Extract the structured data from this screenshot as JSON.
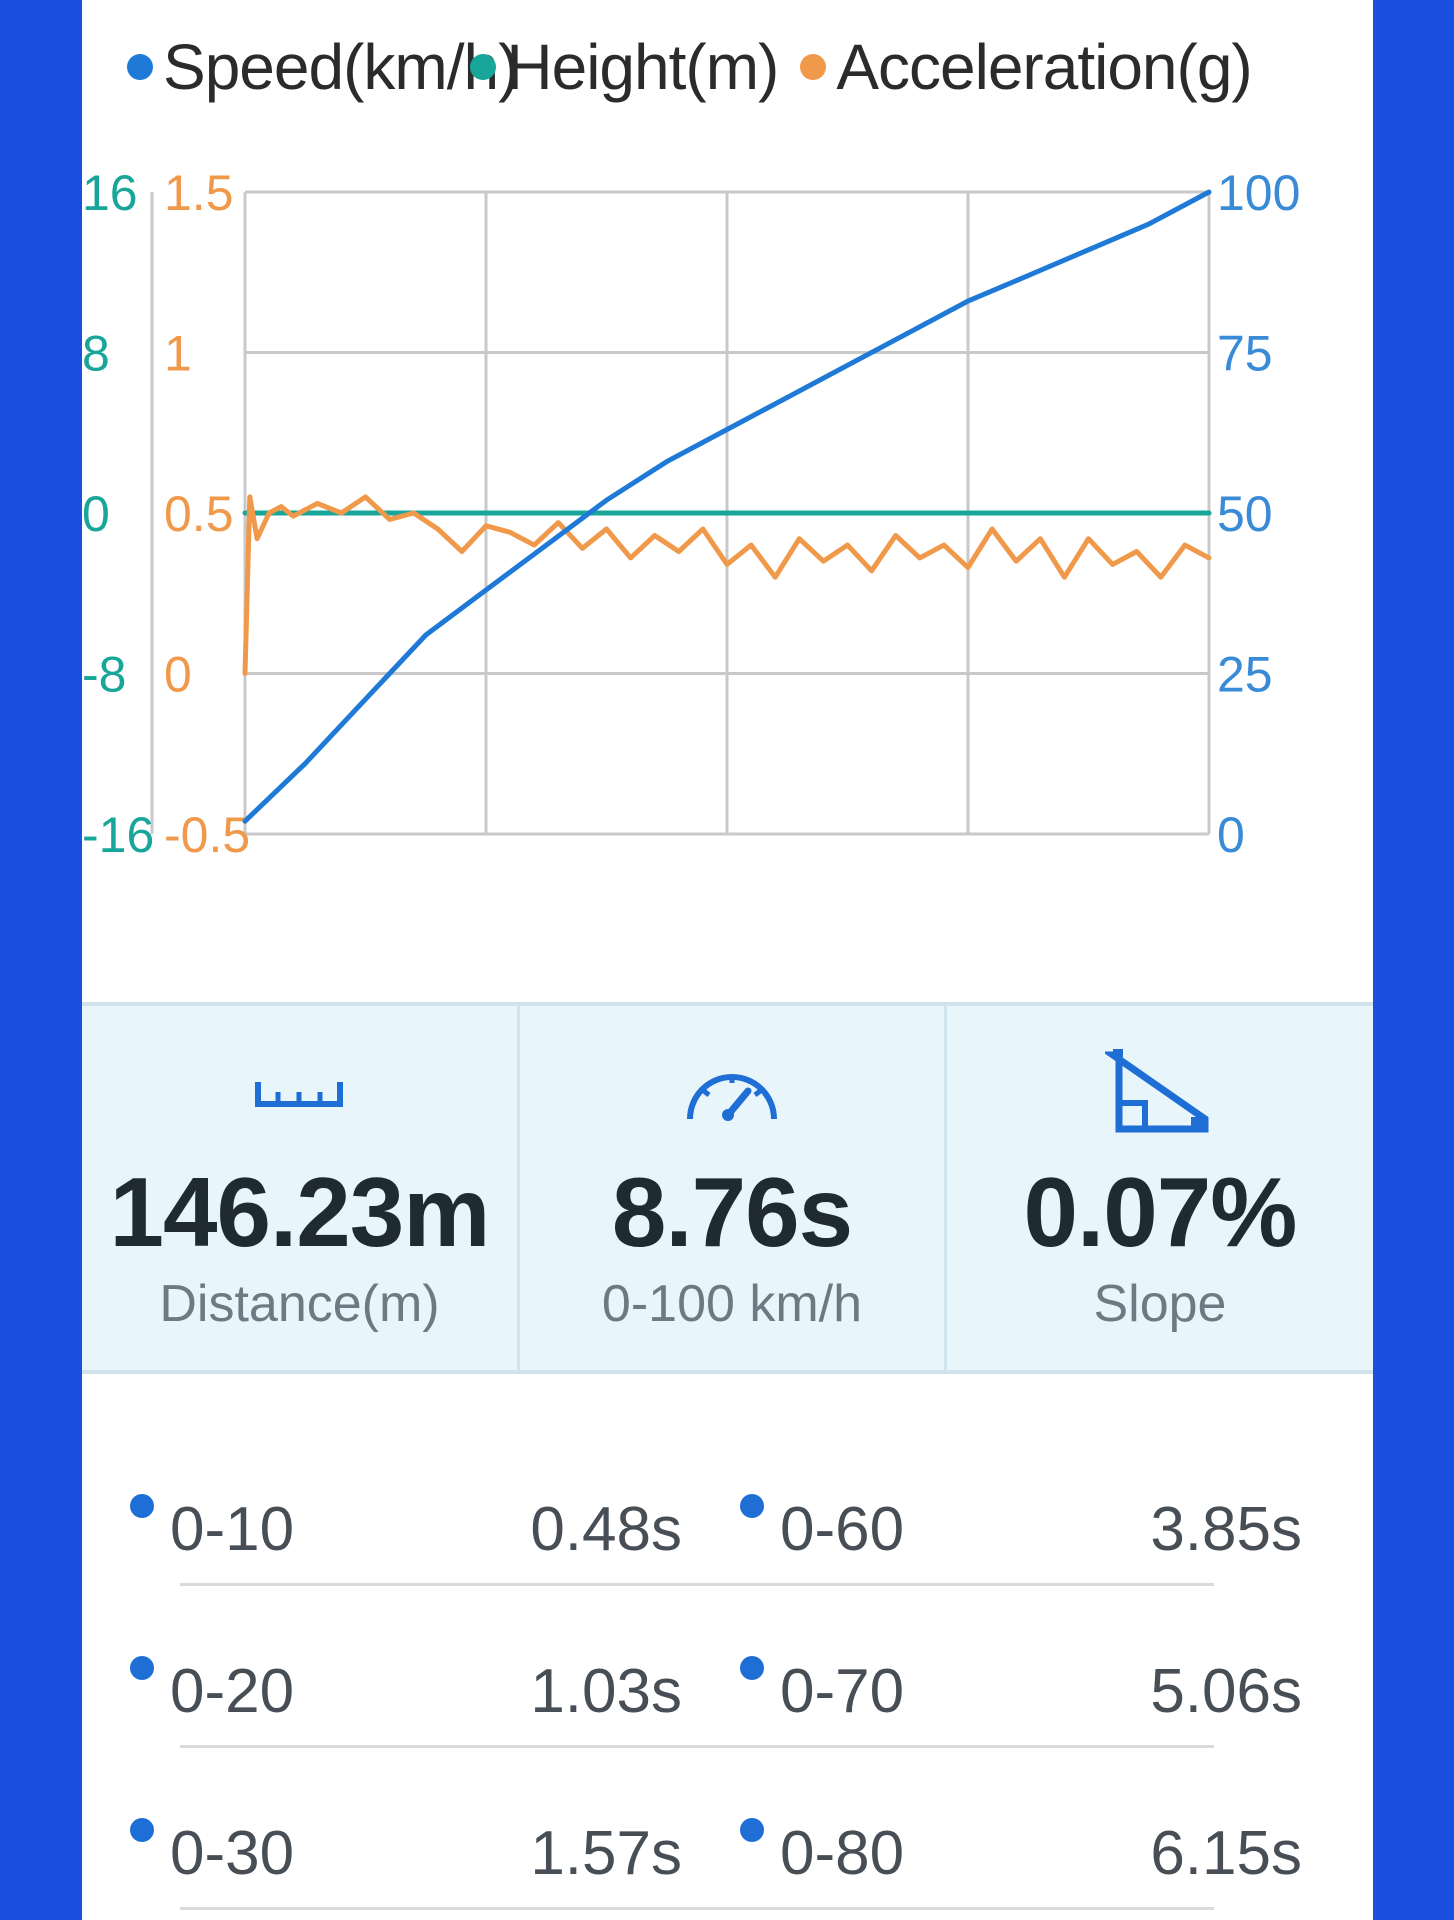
{
  "legend": [
    {
      "label": "Speed(km/h)",
      "color": "#1e7ad6"
    },
    {
      "label": "Height(m)",
      "color": "#18a59a"
    },
    {
      "label": "Acceleration(g)",
      "color": "#f0994a"
    }
  ],
  "chart_data": {
    "type": "line",
    "x_range": [
      0,
      4
    ],
    "axes": {
      "height": {
        "ticks": [
          "16",
          "8",
          "0",
          "-8",
          "-16"
        ],
        "range": [
          -16,
          16
        ],
        "color": "#18a59a"
      },
      "acceleration": {
        "ticks": [
          "1.5",
          "1",
          "0.5",
          "0",
          "-0.5"
        ],
        "range": [
          -0.5,
          1.5
        ],
        "color": "#f0994a"
      },
      "speed": {
        "ticks": [
          "100",
          "75",
          "50",
          "25",
          "0"
        ],
        "range": [
          0,
          100
        ],
        "color": "#3a8bd6"
      }
    },
    "grid": true,
    "series": [
      {
        "name": "Speed(km/h)",
        "axis": "speed",
        "color": "#1e7ad6",
        "x": [
          0,
          0.25,
          0.5,
          0.75,
          1.0,
          1.25,
          1.5,
          1.75,
          2.0,
          2.25,
          2.5,
          2.75,
          3.0,
          3.25,
          3.5,
          3.75,
          4.0
        ],
        "y": [
          2,
          11,
          21,
          31,
          38,
          45,
          52,
          58,
          63,
          68,
          73,
          78,
          83,
          87,
          91,
          95,
          100
        ]
      },
      {
        "name": "Height(m)",
        "axis": "height",
        "color": "#18a59a",
        "x": [
          0,
          4.0
        ],
        "y": [
          0,
          0
        ]
      },
      {
        "name": "Acceleration(g)",
        "axis": "acceleration",
        "color": "#f0994a",
        "x": [
          0,
          0.02,
          0.05,
          0.1,
          0.15,
          0.2,
          0.3,
          0.4,
          0.5,
          0.6,
          0.7,
          0.8,
          0.9,
          1.0,
          1.1,
          1.2,
          1.3,
          1.4,
          1.5,
          1.6,
          1.7,
          1.8,
          1.9,
          2.0,
          2.1,
          2.2,
          2.3,
          2.4,
          2.5,
          2.6,
          2.7,
          2.8,
          2.9,
          3.0,
          3.1,
          3.2,
          3.3,
          3.4,
          3.5,
          3.6,
          3.7,
          3.8,
          3.9,
          4.0
        ],
        "y": [
          0.0,
          0.55,
          0.42,
          0.5,
          0.52,
          0.49,
          0.53,
          0.5,
          0.55,
          0.48,
          0.5,
          0.45,
          0.38,
          0.46,
          0.44,
          0.4,
          0.47,
          0.39,
          0.45,
          0.36,
          0.43,
          0.38,
          0.45,
          0.34,
          0.4,
          0.3,
          0.42,
          0.35,
          0.4,
          0.32,
          0.43,
          0.36,
          0.4,
          0.33,
          0.45,
          0.35,
          0.42,
          0.3,
          0.42,
          0.34,
          0.38,
          0.3,
          0.4,
          0.36
        ]
      }
    ]
  },
  "stats": [
    {
      "icon": "ruler-icon",
      "value": "146.23m",
      "label": "Distance(m)"
    },
    {
      "icon": "speedometer-icon",
      "value": "8.76s",
      "label": "0-100 km/h"
    },
    {
      "icon": "slope-icon",
      "value": "0.07%",
      "label": "Slope"
    }
  ],
  "times": [
    {
      "left": {
        "range": "0-10",
        "time": "0.48s"
      },
      "right": {
        "range": "0-60",
        "time": "3.85s"
      }
    },
    {
      "left": {
        "range": "0-20",
        "time": "1.03s"
      },
      "right": {
        "range": "0-70",
        "time": "5.06s"
      }
    },
    {
      "left": {
        "range": "0-30",
        "time": "1.57s"
      },
      "right": {
        "range": "0-80",
        "time": "6.15s"
      }
    }
  ],
  "colors": {
    "accent": "#1e6ed6",
    "stats_bg": "#e8f6fc",
    "frame": "#1a4fe0"
  }
}
